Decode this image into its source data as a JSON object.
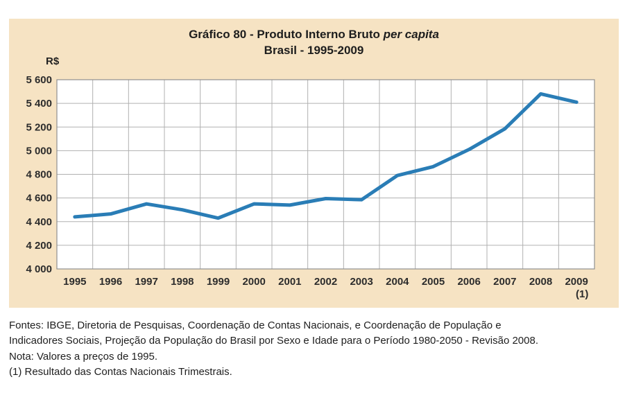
{
  "chart_data": {
    "type": "line",
    "title_prefix": "Gráfico 80 - Produto Interno Bruto",
    "title_italic": "per capita",
    "subtitle": "Brasil - 1995-2009",
    "unit_label": "R$",
    "categories": [
      "1995",
      "1996",
      "1997",
      "1998",
      "1999",
      "2000",
      "2001",
      "2002",
      "2003",
      "2004",
      "2005",
      "2006",
      "2007",
      "2008",
      "2009"
    ],
    "values": [
      4440,
      4465,
      4550,
      4500,
      4430,
      4550,
      4540,
      4595,
      4585,
      4790,
      4865,
      5010,
      5185,
      5480,
      5410
    ],
    "ylim": [
      4000,
      5600
    ],
    "ytick_step": 200,
    "ytick_labels": [
      "4 000",
      "4 200",
      "4 400",
      "4 600",
      "4 800",
      "5 000",
      "5 200",
      "5 400",
      "5 600"
    ],
    "category_footnote": {
      "category": "2009",
      "marker": "(1)"
    },
    "grid": true,
    "legend_position": "none",
    "line_color": "#2a7db6"
  },
  "colors": {
    "panel_background": "#f6e3c3",
    "plot_background": "#ffffff",
    "gridline": "#b0b0b0",
    "frame": "#909090",
    "line": "#2a7db6",
    "text": "#222222"
  },
  "footer": {
    "lines": [
      "Fontes: IBGE, Diretoria de Pesquisas, Coordenação de Contas Nacionais, e Coordenação de População e",
      "Indicadores Sociais, Projeção da População do Brasil por Sexo e Idade para o Período 1980-2050 - Revisão 2008.",
      "Nota: Valores a preços de 1995.",
      "(1) Resultado das Contas Nacionais Trimestrais."
    ]
  }
}
